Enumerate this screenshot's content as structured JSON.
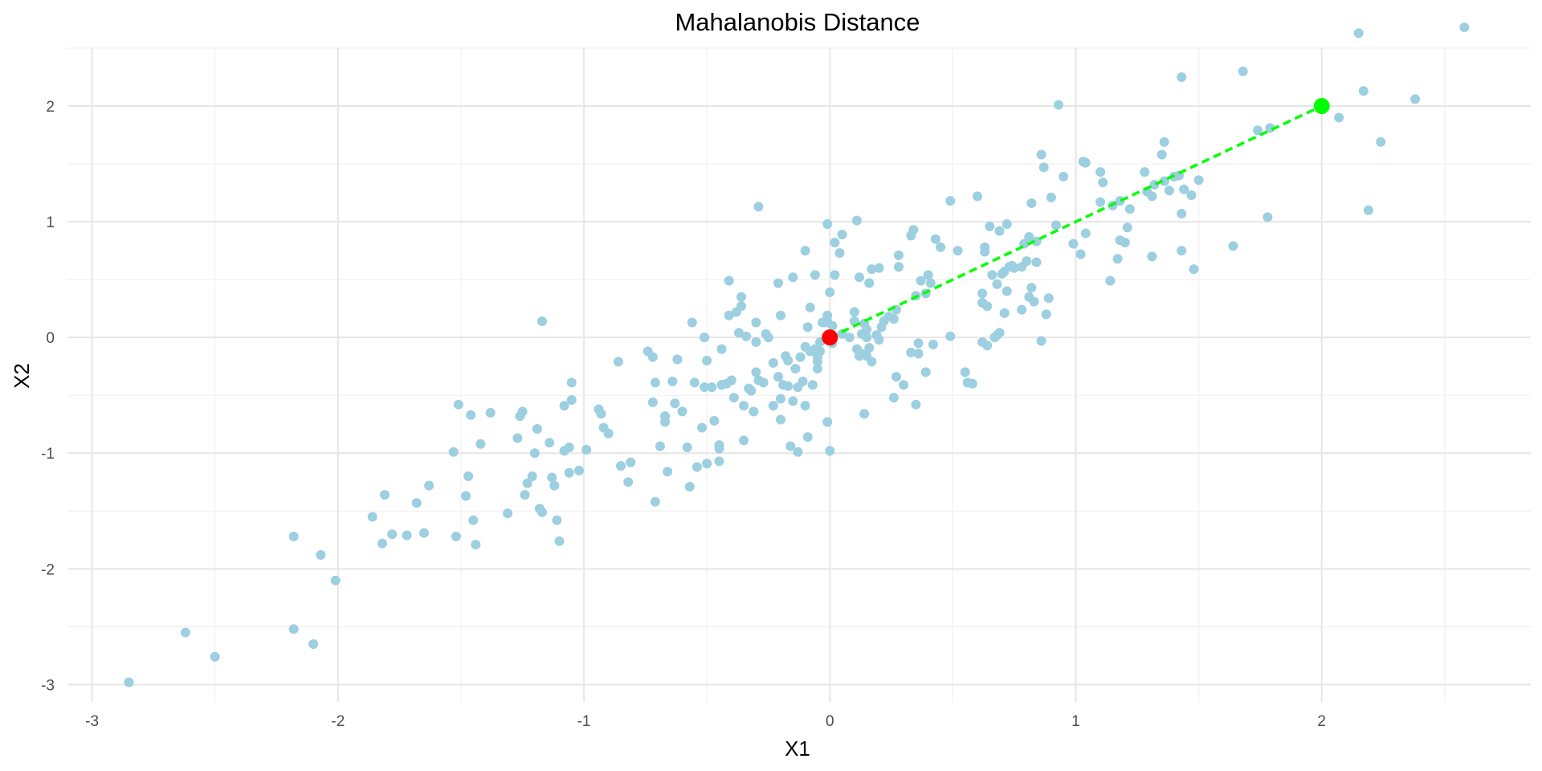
{
  "chart_data": {
    "type": "scatter",
    "title": "Mahalanobis Distance",
    "xlabel": "X1",
    "ylabel": "X2",
    "xlim": [
      -3.1,
      2.85
    ],
    "ylim": [
      -3.15,
      2.5
    ],
    "x_ticks": [
      -3,
      -2,
      -1,
      0,
      1,
      2
    ],
    "y_ticks": [
      -3,
      -2,
      -1,
      0,
      1,
      2
    ],
    "grid": true,
    "legend": "none",
    "colors": {
      "points": "#9ccfe0",
      "center": "#ff0000",
      "target": "#00ff00",
      "line": "#00ff00"
    },
    "series": [
      {
        "points": [
          [
            -2.85,
            -2.98
          ],
          [
            -2.62,
            -2.55
          ],
          [
            -2.5,
            -2.76
          ],
          [
            -2.18,
            -1.72
          ],
          [
            -2.18,
            -2.52
          ],
          [
            -2.1,
            -2.65
          ],
          [
            -2.07,
            -1.88
          ],
          [
            -2.01,
            -2.1
          ],
          [
            -1.86,
            -1.55
          ],
          [
            -1.82,
            -1.78
          ],
          [
            -1.81,
            -1.36
          ],
          [
            -1.78,
            -1.7
          ],
          [
            -1.72,
            -1.71
          ],
          [
            -1.68,
            -1.43
          ],
          [
            -1.65,
            -1.69
          ],
          [
            -1.63,
            -1.28
          ],
          [
            -1.53,
            -0.99
          ],
          [
            -1.52,
            -1.72
          ],
          [
            -1.51,
            -0.58
          ],
          [
            -1.48,
            -1.37
          ],
          [
            -1.47,
            -1.2
          ],
          [
            -1.46,
            -0.67
          ],
          [
            -1.45,
            -1.58
          ],
          [
            -1.44,
            -1.79
          ],
          [
            -1.42,
            -0.92
          ],
          [
            -1.38,
            -0.65
          ],
          [
            -1.31,
            -1.52
          ],
          [
            -1.27,
            -0.87
          ],
          [
            -1.26,
            -0.68
          ],
          [
            -1.25,
            -0.64
          ],
          [
            -1.24,
            -1.36
          ],
          [
            -1.23,
            -1.26
          ],
          [
            -1.21,
            -1.2
          ],
          [
            -1.2,
            -1.0
          ],
          [
            -1.19,
            -0.79
          ],
          [
            -1.18,
            -1.48
          ],
          [
            -1.17,
            -1.51
          ],
          [
            -1.17,
            0.14
          ],
          [
            -1.14,
            -0.91
          ],
          [
            -1.13,
            -1.21
          ],
          [
            -1.12,
            -1.28
          ],
          [
            -1.11,
            -1.58
          ],
          [
            -1.1,
            -1.76
          ],
          [
            -1.08,
            -0.98
          ],
          [
            -1.08,
            -0.59
          ],
          [
            -1.06,
            -0.95
          ],
          [
            -1.06,
            -1.17
          ],
          [
            -1.05,
            -0.39
          ],
          [
            -1.05,
            -0.54
          ],
          [
            -1.02,
            -1.15
          ],
          [
            -0.99,
            -0.97
          ],
          [
            -0.94,
            -0.62
          ],
          [
            -0.93,
            -0.66
          ],
          [
            -0.92,
            -0.78
          ],
          [
            -0.9,
            -0.83
          ],
          [
            -0.86,
            -0.21
          ],
          [
            -0.85,
            -1.11
          ],
          [
            -0.82,
            -1.25
          ],
          [
            -0.81,
            -1.08
          ],
          [
            -0.74,
            -0.12
          ],
          [
            -0.72,
            -0.56
          ],
          [
            -0.72,
            -0.17
          ],
          [
            -0.71,
            -0.39
          ],
          [
            -0.71,
            -1.42
          ],
          [
            -0.69,
            -0.94
          ],
          [
            -0.67,
            -0.68
          ],
          [
            -0.67,
            -0.73
          ],
          [
            -0.66,
            -1.16
          ],
          [
            -0.64,
            -0.38
          ],
          [
            -0.63,
            -0.57
          ],
          [
            -0.62,
            -0.19
          ],
          [
            -0.6,
            -0.64
          ],
          [
            -0.58,
            -0.95
          ],
          [
            -0.57,
            -1.29
          ],
          [
            -0.56,
            0.13
          ],
          [
            -0.55,
            -0.39
          ],
          [
            -0.54,
            -1.12
          ],
          [
            -0.52,
            -0.78
          ],
          [
            -0.51,
            0.0
          ],
          [
            -0.51,
            -0.43
          ],
          [
            -0.5,
            -0.2
          ],
          [
            -0.5,
            -1.09
          ],
          [
            -0.48,
            -0.43
          ],
          [
            -0.47,
            -0.72
          ],
          [
            -0.45,
            -0.93
          ],
          [
            -0.45,
            -0.96
          ],
          [
            -0.45,
            -1.07
          ],
          [
            -0.44,
            -0.1
          ],
          [
            -0.44,
            -0.41
          ],
          [
            -0.42,
            -0.4
          ],
          [
            -0.41,
            0.19
          ],
          [
            -0.41,
            0.49
          ],
          [
            -0.4,
            -0.37
          ],
          [
            -0.39,
            -0.52
          ],
          [
            -0.38,
            0.22
          ],
          [
            -0.37,
            0.04
          ],
          [
            -0.36,
            0.27
          ],
          [
            -0.36,
            0.35
          ],
          [
            -0.35,
            -0.59
          ],
          [
            -0.35,
            -0.89
          ],
          [
            -0.34,
            0.01
          ],
          [
            -0.33,
            -0.44
          ],
          [
            -0.32,
            -0.46
          ],
          [
            -0.31,
            -0.64
          ],
          [
            -0.3,
            -0.3
          ],
          [
            -0.3,
            -0.04
          ],
          [
            -0.3,
            0.13
          ],
          [
            -0.29,
            1.13
          ],
          [
            -0.29,
            -0.37
          ],
          [
            -0.27,
            -0.39
          ],
          [
            -0.26,
            0.03
          ],
          [
            -0.25,
            0.0
          ],
          [
            -0.23,
            -0.59
          ],
          [
            -0.23,
            -0.22
          ],
          [
            -0.21,
            0.47
          ],
          [
            -0.21,
            -0.34
          ],
          [
            -0.2,
            0.19
          ],
          [
            -0.2,
            -0.71
          ],
          [
            -0.2,
            -0.53
          ],
          [
            -0.19,
            -0.41
          ],
          [
            -0.18,
            -0.16
          ],
          [
            -0.17,
            -0.42
          ],
          [
            -0.17,
            -0.2
          ],
          [
            -0.16,
            -0.94
          ],
          [
            -0.15,
            0.52
          ],
          [
            -0.15,
            -0.55
          ],
          [
            -0.14,
            -0.27
          ],
          [
            -0.13,
            -0.43
          ],
          [
            -0.13,
            -0.99
          ],
          [
            -0.12,
            -0.17
          ],
          [
            -0.11,
            -0.38
          ],
          [
            -0.1,
            -0.59
          ],
          [
            -0.1,
            0.75
          ],
          [
            -0.1,
            -0.08
          ],
          [
            -0.09,
            -0.86
          ],
          [
            -0.09,
            0.09
          ],
          [
            -0.08,
            0.26
          ],
          [
            -0.08,
            -0.12
          ],
          [
            -0.07,
            -0.41
          ],
          [
            -0.06,
            -0.1
          ],
          [
            -0.06,
            0.54
          ],
          [
            -0.05,
            -0.17
          ],
          [
            -0.05,
            -0.27
          ],
          [
            -0.05,
            -0.21
          ],
          [
            -0.04,
            -0.12
          ],
          [
            -0.04,
            -0.04
          ],
          [
            -0.03,
            0.13
          ],
          [
            -0.02,
            0.13
          ],
          [
            -0.01,
            -0.73
          ],
          [
            -0.01,
            0.19
          ],
          [
            -0.01,
            0.98
          ],
          [
            -0.01,
            0.14
          ],
          [
            0.0,
            0.39
          ],
          [
            0.0,
            -0.98
          ],
          [
            0.01,
            -0.05
          ],
          [
            0.01,
            0.1
          ],
          [
            0.02,
            0.54
          ],
          [
            0.02,
            0.82
          ],
          [
            0.04,
            0.73
          ],
          [
            0.05,
            0.89
          ],
          [
            0.05,
            0.03
          ],
          [
            0.08,
            0.0
          ],
          [
            0.1,
            0.22
          ],
          [
            0.1,
            0.14
          ],
          [
            0.11,
            -0.1
          ],
          [
            0.11,
            1.01
          ],
          [
            0.12,
            -0.16
          ],
          [
            0.12,
            0.52
          ],
          [
            0.13,
            -0.14
          ],
          [
            0.13,
            0.03
          ],
          [
            0.14,
            -0.66
          ],
          [
            0.14,
            0.12
          ],
          [
            0.15,
            -0.16
          ],
          [
            0.15,
            0.07
          ],
          [
            0.15,
            0.0
          ],
          [
            0.16,
            0.47
          ],
          [
            0.16,
            -0.09
          ],
          [
            0.17,
            0.59
          ],
          [
            0.17,
            -0.21
          ],
          [
            0.19,
            0.02
          ],
          [
            0.2,
            0.6
          ],
          [
            0.2,
            -0.02
          ],
          [
            0.21,
            0.09
          ],
          [
            0.22,
            0.14
          ],
          [
            0.24,
            0.18
          ],
          [
            0.26,
            0.16
          ],
          [
            0.26,
            -0.52
          ],
          [
            0.27,
            -0.34
          ],
          [
            0.27,
            0.24
          ],
          [
            0.28,
            0.71
          ],
          [
            0.28,
            0.61
          ],
          [
            0.3,
            -0.41
          ],
          [
            0.33,
            0.88
          ],
          [
            0.33,
            -0.13
          ],
          [
            0.34,
            0.93
          ],
          [
            0.35,
            0.36
          ],
          [
            0.35,
            -0.58
          ],
          [
            0.36,
            -0.05
          ],
          [
            0.36,
            -0.14
          ],
          [
            0.37,
            0.49
          ],
          [
            0.39,
            0.38
          ],
          [
            0.39,
            -0.3
          ],
          [
            0.4,
            0.54
          ],
          [
            0.41,
            0.47
          ],
          [
            0.42,
            -0.06
          ],
          [
            0.43,
            0.85
          ],
          [
            0.45,
            0.78
          ],
          [
            0.49,
            1.18
          ],
          [
            0.49,
            0.01
          ],
          [
            0.52,
            0.75
          ],
          [
            0.55,
            -0.3
          ],
          [
            0.56,
            -0.39
          ],
          [
            0.58,
            -0.4
          ],
          [
            0.6,
            1.22
          ],
          [
            0.62,
            0.38
          ],
          [
            0.62,
            0.3
          ],
          [
            0.62,
            -0.04
          ],
          [
            0.63,
            0.74
          ],
          [
            0.63,
            0.78
          ],
          [
            0.64,
            -0.07
          ],
          [
            0.64,
            0.27
          ],
          [
            0.65,
            0.96
          ],
          [
            0.66,
            0.54
          ],
          [
            0.67,
            0.0
          ],
          [
            0.68,
            0.46
          ],
          [
            0.68,
            0.02
          ],
          [
            0.69,
            0.92
          ],
          [
            0.69,
            0.04
          ],
          [
            0.7,
            0.55
          ],
          [
            0.71,
            0.21
          ],
          [
            0.71,
            0.57
          ],
          [
            0.72,
            0.4
          ],
          [
            0.72,
            0.98
          ],
          [
            0.73,
            0.61
          ],
          [
            0.74,
            0.62
          ],
          [
            0.75,
            0.6
          ],
          [
            0.78,
            0.24
          ],
          [
            0.78,
            0.61
          ],
          [
            0.79,
            0.81
          ],
          [
            0.8,
            0.66
          ],
          [
            0.81,
            0.35
          ],
          [
            0.81,
            0.87
          ],
          [
            0.82,
            1.16
          ],
          [
            0.82,
            0.43
          ],
          [
            0.83,
            0.31
          ],
          [
            0.84,
            0.83
          ],
          [
            0.84,
            0.65
          ],
          [
            0.86,
            1.58
          ],
          [
            0.86,
            -0.03
          ],
          [
            0.87,
            1.47
          ],
          [
            0.88,
            0.2
          ],
          [
            0.89,
            0.34
          ],
          [
            0.9,
            1.21
          ],
          [
            0.92,
            0.97
          ],
          [
            0.93,
            2.01
          ],
          [
            0.95,
            1.39
          ],
          [
            0.99,
            0.81
          ],
          [
            1.02,
            0.72
          ],
          [
            1.03,
            1.52
          ],
          [
            1.04,
            1.51
          ],
          [
            1.04,
            0.9
          ],
          [
            1.1,
            1.43
          ],
          [
            1.1,
            1.17
          ],
          [
            1.11,
            1.34
          ],
          [
            1.14,
            0.49
          ],
          [
            1.15,
            1.14
          ],
          [
            1.17,
            0.68
          ],
          [
            1.18,
            0.84
          ],
          [
            1.18,
            1.18
          ],
          [
            1.2,
            0.82
          ],
          [
            1.21,
            0.95
          ],
          [
            1.22,
            1.11
          ],
          [
            1.28,
            1.43
          ],
          [
            1.29,
            1.26
          ],
          [
            1.31,
            0.7
          ],
          [
            1.31,
            1.22
          ],
          [
            1.32,
            1.32
          ],
          [
            1.35,
            1.58
          ],
          [
            1.36,
            1.69
          ],
          [
            1.36,
            1.35
          ],
          [
            1.38,
            1.27
          ],
          [
            1.4,
            1.39
          ],
          [
            1.42,
            1.4
          ],
          [
            1.43,
            1.07
          ],
          [
            1.43,
            0.75
          ],
          [
            1.43,
            2.25
          ],
          [
            1.44,
            1.28
          ],
          [
            1.47,
            1.23
          ],
          [
            1.48,
            0.59
          ],
          [
            1.5,
            1.36
          ],
          [
            1.64,
            0.79
          ],
          [
            1.68,
            2.3
          ],
          [
            1.74,
            1.79
          ],
          [
            1.78,
            1.04
          ],
          [
            1.79,
            1.81
          ],
          [
            2.07,
            1.9
          ],
          [
            2.15,
            2.63
          ],
          [
            2.17,
            2.13
          ],
          [
            2.19,
            1.1
          ],
          [
            2.24,
            1.69
          ],
          [
            2.38,
            2.06
          ],
          [
            2.58,
            2.68
          ]
        ]
      }
    ],
    "center_point": [
      0,
      0
    ],
    "target_point": [
      2,
      2
    ]
  }
}
